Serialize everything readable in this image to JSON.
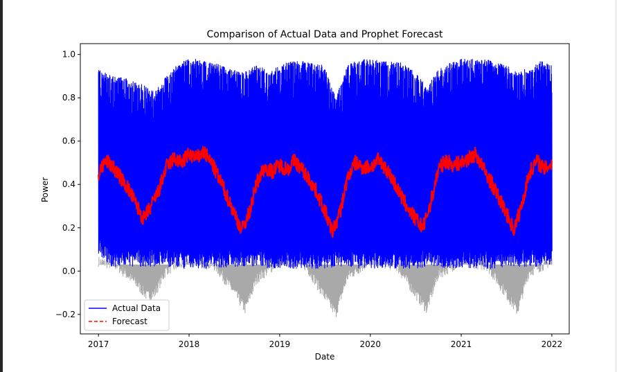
{
  "chart_data": {
    "type": "line",
    "title": "Comparison of Actual Data and Prophet Forecast",
    "xlabel": "Date",
    "ylabel": "Power",
    "xlim": [
      "2016-10-20",
      "2022-03-12"
    ],
    "ylim": [
      -0.29,
      1.05
    ],
    "x_ticks": [
      "2017",
      "2018",
      "2019",
      "2020",
      "2021",
      "2022"
    ],
    "y_ticks": [
      "−0.2",
      "0.0",
      "0.2",
      "0.4",
      "0.6",
      "0.8",
      "1.0"
    ],
    "legend": {
      "position": "lower-left"
    },
    "series": [
      {
        "name": "Actual Data",
        "color": "#0000ff",
        "style": "solid",
        "x": [
          "2017-01-01",
          "2017-02-15",
          "2017-04-01",
          "2017-05-15",
          "2017-07-01",
          "2017-08-15",
          "2017-10-01",
          "2017-11-15",
          "2018-01-01",
          "2018-02-15",
          "2018-04-01",
          "2018-05-15",
          "2018-07-01",
          "2018-08-15",
          "2018-10-01",
          "2018-11-15",
          "2019-01-01",
          "2019-02-15",
          "2019-04-01",
          "2019-05-15",
          "2019-07-01",
          "2019-08-15",
          "2019-10-01",
          "2019-11-15",
          "2020-01-01",
          "2020-02-15",
          "2020-04-01",
          "2020-05-15",
          "2020-07-01",
          "2020-08-15",
          "2020-10-01",
          "2020-11-15",
          "2021-01-01",
          "2021-02-15",
          "2021-04-01",
          "2021-05-15",
          "2021-07-01",
          "2021-08-15",
          "2021-10-01",
          "2021-11-15",
          "2022-01-01"
        ],
        "y_max": [
          0.93,
          0.91,
          0.9,
          0.88,
          0.86,
          0.83,
          0.9,
          0.96,
          0.98,
          0.98,
          0.97,
          0.95,
          0.93,
          0.92,
          0.96,
          0.92,
          0.95,
          0.97,
          0.97,
          0.96,
          0.95,
          0.8,
          0.95,
          0.98,
          0.98,
          0.97,
          0.97,
          0.96,
          0.92,
          0.85,
          0.93,
          0.96,
          0.98,
          0.98,
          0.98,
          0.97,
          0.95,
          0.92,
          0.94,
          0.97,
          0.96
        ],
        "y_min": [
          0.08,
          0.02,
          0.02,
          0.02,
          0.02,
          0.02,
          0.02,
          0.01,
          0.01,
          0.01,
          0.01,
          0.01,
          0.02,
          0.02,
          0.02,
          0.01,
          0.01,
          0.01,
          0.01,
          0.01,
          0.01,
          0.02,
          0.02,
          0.01,
          0.01,
          0.01,
          0.01,
          0.01,
          0.01,
          0.02,
          0.02,
          0.01,
          0.01,
          0.01,
          0.01,
          0.01,
          0.02,
          0.02,
          0.02,
          0.02,
          0.03
        ]
      },
      {
        "name": "Forecast",
        "color": "#ff0000",
        "style": "dashed",
        "x": [
          "2017-01-01",
          "2017-02-01",
          "2017-03-01",
          "2017-04-01",
          "2017-05-01",
          "2017-06-01",
          "2017-07-01",
          "2017-08-01",
          "2017-09-01",
          "2017-10-01",
          "2017-11-01",
          "2017-12-01",
          "2018-01-01",
          "2018-02-01",
          "2018-03-01",
          "2018-04-01",
          "2018-05-01",
          "2018-06-01",
          "2018-07-01",
          "2018-08-01",
          "2018-09-01",
          "2018-10-01",
          "2018-11-01",
          "2018-12-01",
          "2019-01-01",
          "2019-02-01",
          "2019-03-01",
          "2019-04-01",
          "2019-05-01",
          "2019-06-01",
          "2019-07-01",
          "2019-08-01",
          "2019-09-01",
          "2019-10-01",
          "2019-11-01",
          "2019-12-01",
          "2020-01-01",
          "2020-02-01",
          "2020-03-01",
          "2020-04-01",
          "2020-05-01",
          "2020-06-01",
          "2020-07-01",
          "2020-08-01",
          "2020-09-01",
          "2020-10-01",
          "2020-11-01",
          "2020-12-01",
          "2021-01-01",
          "2021-02-01",
          "2021-03-01",
          "2021-04-01",
          "2021-05-01",
          "2021-06-01",
          "2021-07-01",
          "2021-08-01",
          "2021-09-01",
          "2021-10-01",
          "2021-11-01",
          "2021-12-01",
          "2022-01-01"
        ],
        "y": [
          0.45,
          0.51,
          0.48,
          0.43,
          0.38,
          0.31,
          0.24,
          0.3,
          0.37,
          0.48,
          0.52,
          0.5,
          0.54,
          0.52,
          0.55,
          0.5,
          0.43,
          0.35,
          0.27,
          0.19,
          0.27,
          0.41,
          0.48,
          0.46,
          0.49,
          0.47,
          0.51,
          0.47,
          0.42,
          0.36,
          0.28,
          0.18,
          0.27,
          0.43,
          0.5,
          0.48,
          0.48,
          0.51,
          0.48,
          0.42,
          0.35,
          0.29,
          0.24,
          0.2,
          0.32,
          0.47,
          0.51,
          0.49,
          0.5,
          0.52,
          0.54,
          0.47,
          0.41,
          0.34,
          0.27,
          0.19,
          0.3,
          0.45,
          0.51,
          0.47,
          0.5
        ],
        "band": 0.035
      }
    ],
    "uncertainty_interval": {
      "color": "#a9a9a9",
      "note_free": true,
      "x": [
        "2017-01-01",
        "2017-03-15",
        "2017-06-01",
        "2017-07-15",
        "2017-08-15",
        "2017-10-01",
        "2018-01-01",
        "2018-04-15",
        "2018-07-01",
        "2018-08-15",
        "2018-10-01",
        "2019-01-01",
        "2019-04-15",
        "2019-07-01",
        "2019-08-15",
        "2019-10-01",
        "2020-01-01",
        "2020-04-15",
        "2020-07-01",
        "2020-08-15",
        "2020-10-01",
        "2021-01-01",
        "2021-04-15",
        "2021-07-01",
        "2021-08-15",
        "2021-10-01",
        "2022-01-01"
      ],
      "lower": [
        0.02,
        0.0,
        -0.08,
        -0.14,
        -0.13,
        -0.02,
        0.02,
        0.0,
        -0.12,
        -0.2,
        -0.06,
        0.02,
        0.0,
        -0.14,
        -0.22,
        -0.05,
        0.02,
        0.0,
        -0.13,
        -0.2,
        -0.04,
        0.02,
        0.0,
        -0.13,
        -0.21,
        -0.03,
        0.02
      ]
    }
  }
}
